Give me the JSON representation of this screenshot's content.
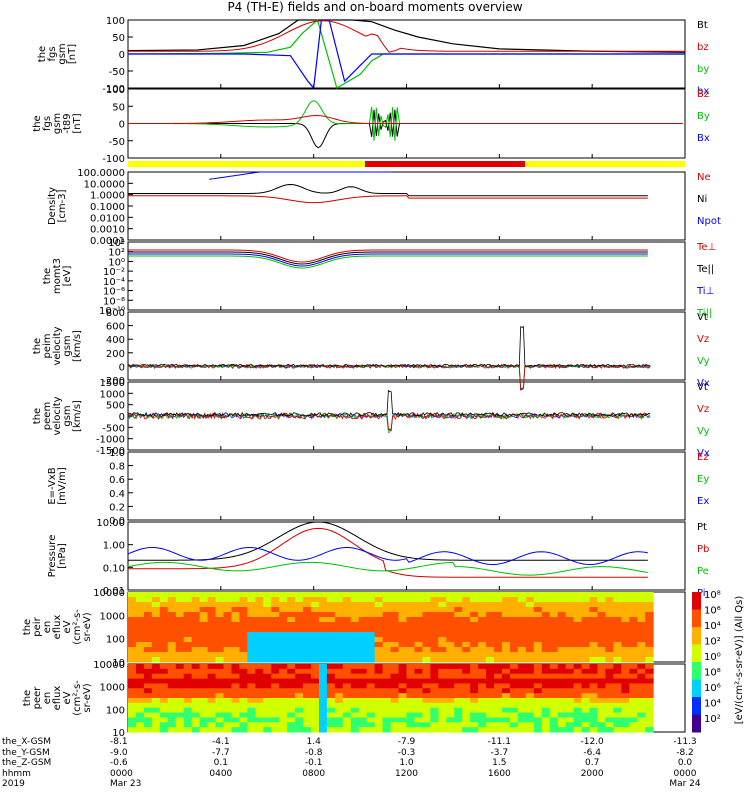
{
  "title": "P4 (TH-E) fields and on-board moments overview",
  "panels": [
    {
      "id": "fgs",
      "ylabel": [
        "the",
        "fgs",
        "gsm",
        "[nT]"
      ],
      "ticks": [
        "100",
        "50",
        "0",
        "-50",
        "-100"
      ],
      "legend": [
        {
          "t": "Bt",
          "c": "#000000"
        },
        {
          "t": "bz",
          "c": "#d00000"
        },
        {
          "t": "by",
          "c": "#00c000"
        },
        {
          "t": "bx",
          "c": "#0000ff"
        }
      ]
    },
    {
      "id": "fgs_t89",
      "ylabel": [
        "the",
        "fgs",
        "gsm",
        "-t89",
        "[nT]"
      ],
      "ticks": [
        "100",
        "50",
        "0",
        "-50",
        "-100"
      ],
      "legend": [
        {
          "t": "Bz",
          "c": "#d00000"
        },
        {
          "t": "By",
          "c": "#00c000"
        },
        {
          "t": "Bx",
          "c": "#0000ff"
        }
      ]
    },
    {
      "id": "density",
      "ylabel": [
        "Density",
        "[cm-3]"
      ],
      "ticks": [
        "100.0000",
        "10.0000",
        "1.0000",
        "0.1000",
        "0.0100",
        "0.0010",
        "0.0001"
      ],
      "legend": [
        {
          "t": "Ne",
          "c": "#d00000"
        },
        {
          "t": "Ni",
          "c": "#000000"
        },
        {
          "t": "Npot",
          "c": "#0000ff"
        }
      ]
    },
    {
      "id": "temp",
      "ylabel": [
        "the",
        "momt3",
        "[eV]"
      ],
      "ticks": [
        "10⁴",
        "10²",
        "10⁰",
        "10⁻²",
        "10⁻⁴",
        "10⁻⁶",
        "10⁻⁸",
        "10⁻¹⁰"
      ],
      "legend": [
        {
          "t": "Te⊥",
          "c": "#d00000"
        },
        {
          "t": "Te||",
          "c": "#000000"
        },
        {
          "t": "Ti⊥",
          "c": "#0000ff"
        },
        {
          "t": "Ti||",
          "c": "#00c000"
        }
      ]
    },
    {
      "id": "peim",
      "ylabel": [
        "the",
        "peim",
        "velocity",
        "gsm",
        "[km/s]"
      ],
      "ticks": [
        "800",
        "600",
        "400",
        "200",
        "0",
        "-200"
      ],
      "legend": [
        {
          "t": "Vt",
          "c": "#000000"
        },
        {
          "t": "Vz",
          "c": "#d00000"
        },
        {
          "t": "Vy",
          "c": "#00c000"
        },
        {
          "t": "Vx",
          "c": "#0000ff"
        }
      ]
    },
    {
      "id": "peem",
      "ylabel": [
        "the",
        "peem",
        "velocity",
        "gsm",
        "[km/s]"
      ],
      "ticks": [
        "1500",
        "1000",
        "500",
        "0",
        "-500",
        "-1000",
        "-1500"
      ],
      "legend": [
        {
          "t": "Vt",
          "c": "#000000"
        },
        {
          "t": "Vz",
          "c": "#d00000"
        },
        {
          "t": "Vy",
          "c": "#00c000"
        },
        {
          "t": "Vx",
          "c": "#0000ff"
        }
      ]
    },
    {
      "id": "efield",
      "ylabel": [
        "E=-VxB",
        "[mV/m]"
      ],
      "ticks": [
        "1.0",
        "0.8",
        "0.6",
        "0.4",
        "0.2",
        "0.0"
      ],
      "legend": [
        {
          "t": "Ez",
          "c": "#d00000"
        },
        {
          "t": "Ey",
          "c": "#00c000"
        },
        {
          "t": "Ex",
          "c": "#0000ff"
        }
      ]
    },
    {
      "id": "pressure",
      "ylabel": [
        "Pressure",
        "[nPa]"
      ],
      "ticks": [
        "10.00",
        "1.00",
        "0.10",
        "0.01"
      ],
      "legend": [
        {
          "t": "Pt",
          "c": "#000000"
        },
        {
          "t": "Pb",
          "c": "#d00000"
        },
        {
          "t": "Pe",
          "c": "#00c000"
        },
        {
          "t": "Pi",
          "c": "#0000ff"
        }
      ]
    },
    {
      "id": "peir",
      "ylabel": [
        "the",
        "peir",
        "en",
        "eflux",
        "eV",
        "(cm²-s-",
        "sr-eV)"
      ],
      "ticks": [
        "10000",
        "1000",
        "100",
        "10"
      ],
      "legend": []
    },
    {
      "id": "peer",
      "ylabel": [
        "the",
        "peer",
        "en",
        "eflux",
        "eV",
        "(cm²-s-",
        "sr-eV)"
      ],
      "ticks": [
        "10000",
        "1000",
        "100",
        "10"
      ],
      "legend": []
    }
  ],
  "colorbar": {
    "label": "[eV/(cm²-s-sr-eV)] (All Qs)",
    "ticks": [
      "10⁸",
      "10⁶",
      "10⁴",
      "10²",
      "10⁰",
      "10⁸",
      "10⁶",
      "10⁴",
      "10²"
    ]
  },
  "footer": {
    "row_labels": [
      "the_X-GSM",
      "the_Y-GSM",
      "the_Z-GSM",
      "hhmm",
      "2019"
    ],
    "columns": [
      {
        "x": "-8.1",
        "y": "-9.0",
        "z": "-0.6",
        "t": "0000",
        "d": "Mar 23"
      },
      {
        "x": "-4.1",
        "y": "-7.7",
        "z": "0.1",
        "t": "0400",
        "d": ""
      },
      {
        "x": "1.4",
        "y": "-0.8",
        "z": "-0.1",
        "t": "0800",
        "d": ""
      },
      {
        "x": "-7.9",
        "y": "-0.3",
        "z": "1.0",
        "t": "1200",
        "d": ""
      },
      {
        "x": "-11.1",
        "y": "-3.7",
        "z": "1.5",
        "t": "1600",
        "d": ""
      },
      {
        "x": "-12.0",
        "y": "-6.4",
        "z": "0.7",
        "t": "2000",
        "d": ""
      },
      {
        "x": "-11.3",
        "y": "-8.2",
        "z": "0.0",
        "t": "0000",
        "d": "Mar 24"
      }
    ]
  },
  "chart_data": {
    "type": "line",
    "title": "P4 (TH-E) fields and on-board moments overview",
    "x_range": [
      "2019-03-23 00:00",
      "2019-03-24 00:00"
    ],
    "series": [
      {
        "name": "Bt",
        "x": [
          "00:00",
          "03:00",
          "05:00",
          "06:30",
          "07:20",
          "08:40",
          "09:40",
          "10:30",
          "11:30",
          "12:30",
          "14:00",
          "16:00",
          "20:00",
          "24:00"
        ],
        "values": [
          10,
          12,
          25,
          60,
          100,
          100,
          100,
          95,
          70,
          50,
          30,
          15,
          8,
          5
        ]
      },
      {
        "name": "by",
        "x": [
          "00:00",
          "04:00",
          "06:00",
          "07:00",
          "07:30",
          "08:10",
          "09:00",
          "10:00",
          "10:30",
          "11:00",
          "12:00",
          "16:00",
          "24:00"
        ],
        "values": [
          0,
          2,
          5,
          20,
          60,
          100,
          -100,
          -60,
          -20,
          0,
          0,
          0,
          0
        ]
      },
      {
        "name": "bx",
        "x": [
          "00:00",
          "05:00",
          "07:00",
          "07:45",
          "08:00",
          "08:20",
          "08:40",
          "09:20",
          "10:30",
          "11:30",
          "24:00"
        ],
        "values": [
          0,
          0,
          -5,
          -80,
          -100,
          100,
          100,
          -80,
          0,
          0,
          0
        ]
      }
    ]
  }
}
